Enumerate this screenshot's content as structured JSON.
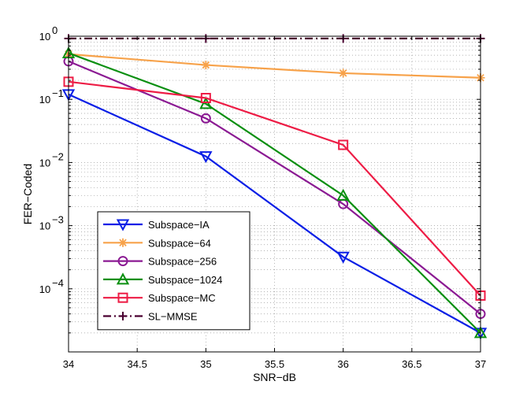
{
  "chart_data": {
    "type": "line",
    "title": "",
    "xlabel": "SNR−dB",
    "ylabel": "FER−Coded",
    "xlim": [
      34,
      37
    ],
    "ylim": [
      1e-05,
      1
    ],
    "yscale": "log",
    "grid": true,
    "legend_position": "bottom-left",
    "x_ticks": [
      34,
      34.5,
      35,
      35.5,
      36,
      36.5,
      37
    ],
    "x_tick_labels": [
      "34",
      "34.5",
      "35",
      "35.5",
      "36",
      "36.5",
      "37"
    ],
    "y_ticks": [
      {
        "value": 1,
        "base": "10",
        "exp": "0"
      },
      {
        "value": 0.1,
        "base": "10",
        "exp": "−1"
      },
      {
        "value": 0.01,
        "base": "10",
        "exp": "−2"
      },
      {
        "value": 0.001,
        "base": "10",
        "exp": "−3"
      },
      {
        "value": 0.0001,
        "base": "10",
        "exp": "−4"
      }
    ],
    "series": [
      {
        "name": "Subspace−IA",
        "color": "#0a1fe6",
        "marker": "triangle-down",
        "dash": "solid",
        "x": [
          34,
          35,
          36,
          37
        ],
        "y": [
          0.12,
          0.0125,
          0.00032,
          2e-05
        ]
      },
      {
        "name": "Subspace−64",
        "color": "#f7a24a",
        "marker": "star",
        "dash": "solid",
        "x": [
          34,
          35,
          36,
          37
        ],
        "y": [
          0.52,
          0.35,
          0.26,
          0.22
        ]
      },
      {
        "name": "Subspace−256",
        "color": "#8b1a93",
        "marker": "circle",
        "dash": "solid",
        "x": [
          34,
          35,
          36,
          37
        ],
        "y": [
          0.4,
          0.05,
          0.0022,
          4e-05
        ]
      },
      {
        "name": "Subspace−1024",
        "color": "#0a8f10",
        "marker": "triangle-up",
        "dash": "solid",
        "x": [
          34,
          35,
          36,
          37
        ],
        "y": [
          0.54,
          0.085,
          0.003,
          2e-05
        ]
      },
      {
        "name": "Subspace−MC",
        "color": "#ed1c45",
        "marker": "square",
        "dash": "solid",
        "x": [
          34,
          35,
          36,
          37
        ],
        "y": [
          0.19,
          0.105,
          0.019,
          7.8e-05
        ]
      },
      {
        "name": "SL−MMSE",
        "color": "#4a0030",
        "marker": "plus",
        "dash": "dashdot",
        "x": [
          34,
          35,
          36,
          37
        ],
        "y": [
          0.92,
          0.92,
          0.92,
          0.92
        ]
      }
    ]
  }
}
